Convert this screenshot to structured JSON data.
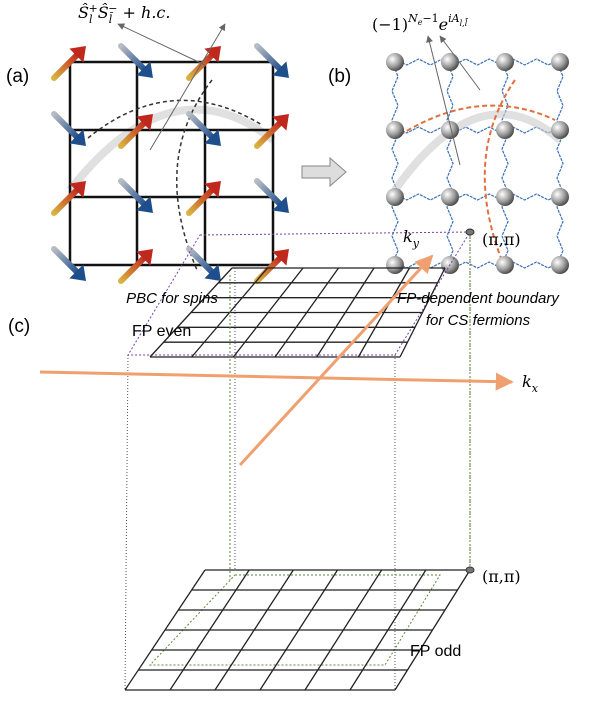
{
  "panel_a": {
    "label": "(a)",
    "formula": [
      "Ŝ",
      "l",
      "+",
      "Ŝ",
      "l̄",
      "−",
      " + h.c."
    ],
    "caption": "PBC for spins"
  },
  "panel_b": {
    "label": "(b)",
    "formula": [
      "(−1)",
      "N",
      "e",
      "−1",
      "e",
      "iA",
      "l,l̄"
    ],
    "caption": [
      "FP-dependent boundary",
      "for CS fermions"
    ]
  },
  "panel_c": {
    "label": "(c)",
    "ky": [
      "k",
      "y"
    ],
    "kx": [
      "k",
      "x"
    ],
    "corner_top": "(π,π)",
    "corner_bottom": "(π,π)",
    "plane_top": "FP even",
    "plane_bottom": "FP odd"
  }
}
